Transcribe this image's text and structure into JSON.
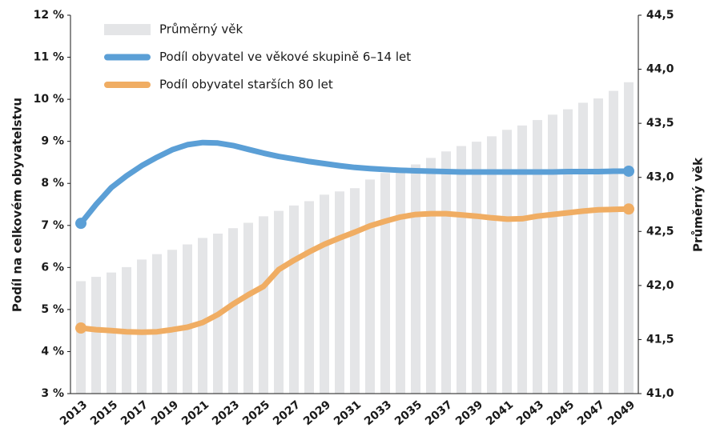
{
  "chart_data": {
    "type": "combo",
    "categories": [
      "2013",
      null,
      "2015",
      null,
      "2017",
      null,
      "2019",
      null,
      "2021",
      null,
      "2023",
      null,
      "2025",
      null,
      "2027",
      null,
      "2029",
      null,
      "2031",
      null,
      "2033",
      null,
      "2035",
      null,
      "2037",
      null,
      "2039",
      null,
      "2041",
      null,
      "2043",
      null,
      "2045",
      null,
      "2047",
      null,
      "2049"
    ],
    "y_label": "Podíl na celkovém obyvatelstvu",
    "y2_label": "Průměrný věk",
    "ylim": [
      3,
      12
    ],
    "yticks": [
      {
        "value": 3,
        "label": "3 %"
      },
      {
        "value": 4,
        "label": "4 %"
      },
      {
        "value": 5,
        "label": "5 %"
      },
      {
        "value": 6,
        "label": "6 %"
      },
      {
        "value": 7,
        "label": "7 %"
      },
      {
        "value": 8,
        "label": "8 %"
      },
      {
        "value": 9,
        "label": "9 %"
      },
      {
        "value": 10,
        "label": "10 %"
      },
      {
        "value": 11,
        "label": "11 %"
      },
      {
        "value": 12,
        "label": "12 %"
      }
    ],
    "y2lim": [
      41,
      44.5
    ],
    "y2ticks": [
      {
        "value": 41,
        "label": "41,0"
      },
      {
        "value": 41.5,
        "label": "41,5"
      },
      {
        "value": 42,
        "label": "42,0"
      },
      {
        "value": 42.5,
        "label": "42,5"
      },
      {
        "value": 43,
        "label": "43,0"
      },
      {
        "value": 43.5,
        "label": "43,5"
      },
      {
        "value": 44,
        "label": "44,0"
      },
      {
        "value": 44.5,
        "label": "44,5"
      }
    ],
    "series": [
      {
        "name": "Průměrný věk",
        "type": "bar",
        "axis": "y2",
        "color": "#e4e5e7",
        "values": [
          42.04,
          42.08,
          42.12,
          42.17,
          42.24,
          42.29,
          42.33,
          42.38,
          42.44,
          42.48,
          42.53,
          42.58,
          42.64,
          42.69,
          42.74,
          42.78,
          42.84,
          42.87,
          42.9,
          42.98,
          43.04,
          43.07,
          43.12,
          43.18,
          43.24,
          43.29,
          43.33,
          43.38,
          43.44,
          43.48,
          43.53,
          43.58,
          43.63,
          43.69,
          43.73,
          43.8,
          43.88
        ]
      },
      {
        "name": "Podíl obyvatel ve věkové skupině 6–14 let",
        "type": "line",
        "color": "#5b9fd6",
        "values": [
          7.05,
          7.5,
          7.9,
          8.18,
          8.42,
          8.62,
          8.8,
          8.92,
          8.97,
          8.96,
          8.9,
          8.81,
          8.72,
          8.64,
          8.58,
          8.52,
          8.47,
          8.42,
          8.38,
          8.35,
          8.33,
          8.31,
          8.3,
          8.29,
          8.28,
          8.27,
          8.27,
          8.27,
          8.27,
          8.27,
          8.27,
          8.27,
          8.28,
          8.28,
          8.28,
          8.29,
          8.29
        ]
      },
      {
        "name": "Podíl obyvatel starších 80 let",
        "type": "line",
        "color": "#f0ad63",
        "values": [
          4.56,
          4.52,
          4.5,
          4.47,
          4.46,
          4.47,
          4.52,
          4.58,
          4.69,
          4.88,
          5.13,
          5.35,
          5.55,
          5.95,
          6.17,
          6.37,
          6.55,
          6.7,
          6.84,
          6.99,
          7.1,
          7.2,
          7.26,
          7.28,
          7.28,
          7.25,
          7.22,
          7.18,
          7.15,
          7.16,
          7.22,
          7.26,
          7.3,
          7.34,
          7.37,
          7.38,
          7.39
        ]
      }
    ]
  }
}
